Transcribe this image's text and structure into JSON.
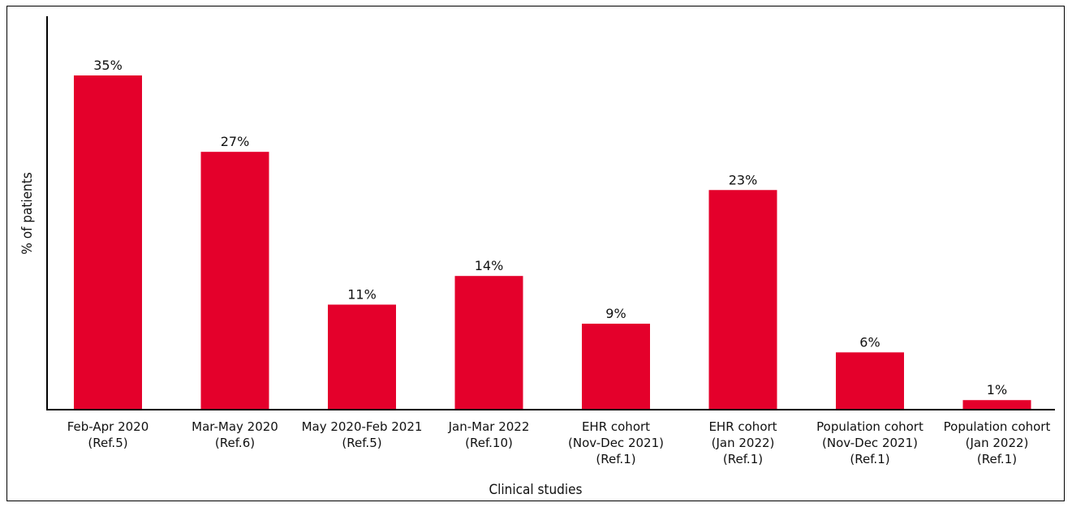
{
  "chart_data": {
    "type": "bar",
    "categories": [
      [
        "Feb-Apr 2020",
        "(Ref.5)"
      ],
      [
        "Mar-May 2020",
        "(Ref.6)"
      ],
      [
        "May 2020-Feb 2021",
        "(Ref.5)"
      ],
      [
        "Jan-Mar 2022",
        "(Ref.10)"
      ],
      [
        "EHR cohort",
        "(Nov-Dec 2021)",
        "(Ref.1)"
      ],
      [
        "EHR cohort",
        "(Jan 2022)",
        "(Ref.1)"
      ],
      [
        "Population cohort",
        "(Nov-Dec 2021)",
        "(Ref.1)"
      ],
      [
        "Population cohort",
        "(Jan 2022)",
        "(Ref.1)"
      ]
    ],
    "values": [
      35,
      27,
      11,
      14,
      9,
      23,
      6,
      1
    ],
    "data_labels": [
      "35%",
      "27%",
      "11%",
      "14%",
      "9%",
      "23%",
      "6%",
      "1%"
    ],
    "title": "",
    "xlabel": "Clinical studies",
    "ylabel": "% of patients",
    "ylim": [
      0,
      35
    ],
    "grid": false,
    "legend": "none",
    "bar_color": "#e4002b"
  }
}
